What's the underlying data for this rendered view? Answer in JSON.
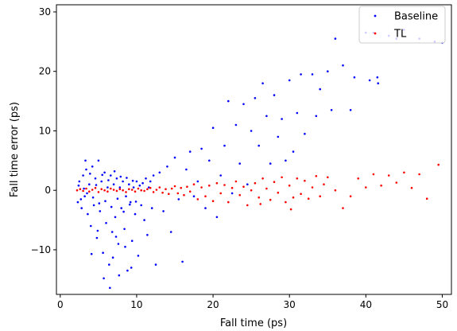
{
  "chart_data": {
    "type": "scatter",
    "title": "",
    "xlabel": "Fall time (ps)",
    "ylabel": "Fall time error (ps)",
    "xlim": [
      -0.5,
      51.2
    ],
    "ylim": [
      -17.5,
      31.2
    ],
    "xticks": [
      0,
      10,
      20,
      30,
      40,
      50
    ],
    "yticks": [
      -10,
      0,
      10,
      20,
      30
    ],
    "xtick_labels": [
      "0",
      "10",
      "20",
      "30",
      "40",
      "50"
    ],
    "ytick_labels": [
      "−10",
      "0",
      "10",
      "20",
      "30"
    ],
    "grid": false,
    "legend_position": "top-right",
    "series": [
      {
        "name": "Baseline",
        "color": "#0000ff",
        "points": [
          [
            2.3,
            -2.0
          ],
          [
            2.5,
            1.5
          ],
          [
            2.8,
            -3.0
          ],
          [
            3.0,
            2.5
          ],
          [
            3.2,
            -1.0
          ],
          [
            3.4,
            3.5
          ],
          [
            3.6,
            -4.0
          ],
          [
            3.8,
            1.0
          ],
          [
            4.0,
            -6.0
          ],
          [
            4.2,
            4.0
          ],
          [
            4.4,
            -2.5
          ],
          [
            4.6,
            2.0
          ],
          [
            4.8,
            -8.0
          ],
          [
            5.0,
            5.0
          ],
          [
            5.2,
            -3.5
          ],
          [
            5.4,
            1.5
          ],
          [
            5.6,
            -10.5
          ],
          [
            5.8,
            3.0
          ],
          [
            6.0,
            -5.5
          ],
          [
            6.2,
            0.5
          ],
          [
            6.4,
            -12.5
          ],
          [
            6.6,
            2.5
          ],
          [
            6.8,
            -7.0
          ],
          [
            7.0,
            1.0
          ],
          [
            7.2,
            -4.5
          ],
          [
            7.4,
            2.0
          ],
          [
            7.6,
            -9.0
          ],
          [
            7.8,
            0.5
          ],
          [
            8.0,
            -3.0
          ],
          [
            8.2,
            1.5
          ],
          [
            8.4,
            -6.5
          ],
          [
            8.6,
            -1.0
          ],
          [
            8.8,
            -13.5
          ],
          [
            9.0,
            1.0
          ],
          [
            9.2,
            -2.0
          ],
          [
            9.4,
            -8.5
          ],
          [
            9.6,
            0.5
          ],
          [
            9.8,
            -4.0
          ],
          [
            10.0,
            1.5
          ],
          [
            10.2,
            -11.0
          ],
          [
            10.4,
            0.8
          ],
          [
            10.6,
            -2.5
          ],
          [
            10.8,
            1.2
          ],
          [
            11.0,
            -5.0
          ],
          [
            11.2,
            2.0
          ],
          [
            11.4,
            -7.5
          ],
          [
            11.6,
            0.5
          ],
          [
            11.8,
            1.5
          ],
          [
            12.0,
            -3.0
          ],
          [
            12.2,
            2.5
          ],
          [
            12.5,
            -12.5
          ],
          [
            13.0,
            3.0
          ],
          [
            13.5,
            -3.5
          ],
          [
            14.0,
            4.0
          ],
          [
            14.5,
            -7.0
          ],
          [
            15.0,
            5.5
          ],
          [
            15.5,
            -1.5
          ],
          [
            16.0,
            -12.0
          ],
          [
            16.5,
            3.5
          ],
          [
            17.0,
            6.5
          ],
          [
            2.4,
            0.8
          ],
          [
            2.7,
            -1.5
          ],
          [
            3.1,
            0.3
          ],
          [
            3.5,
            -0.5
          ],
          [
            3.9,
            2.8
          ],
          [
            4.3,
            -1.2
          ],
          [
            4.7,
            0.9
          ],
          [
            5.1,
            -2.2
          ],
          [
            5.5,
            2.6
          ],
          [
            5.9,
            -1.8
          ],
          [
            6.3,
            1.7
          ],
          [
            6.7,
            -2.8
          ],
          [
            7.1,
            3.2
          ],
          [
            7.5,
            -1.4
          ],
          [
            7.9,
            2.3
          ],
          [
            8.3,
            -3.6
          ],
          [
            8.7,
            2.1
          ],
          [
            9.1,
            -2.4
          ],
          [
            9.5,
            1.6
          ],
          [
            9.9,
            -1.9
          ],
          [
            3.3,
            5.0
          ],
          [
            4.1,
            -10.7
          ],
          [
            4.9,
            -6.8
          ],
          [
            5.7,
            -14.8
          ],
          [
            6.5,
            -16.4
          ],
          [
            6.9,
            -11.3
          ],
          [
            7.3,
            -7.8
          ],
          [
            7.7,
            -14.3
          ],
          [
            8.5,
            -9.5
          ],
          [
            9.3,
            -13.0
          ],
          [
            17.5,
            -1.0
          ],
          [
            18.0,
            1.5
          ],
          [
            18.5,
            7.0
          ],
          [
            19.0,
            -3.0
          ],
          [
            19.5,
            5.0
          ],
          [
            20.0,
            10.5
          ],
          [
            20.5,
            -4.5
          ],
          [
            21.0,
            2.5
          ],
          [
            21.5,
            7.5
          ],
          [
            22.0,
            15.0
          ],
          [
            22.5,
            -0.5
          ],
          [
            23.0,
            11.0
          ],
          [
            23.5,
            4.5
          ],
          [
            24.0,
            14.5
          ],
          [
            24.5,
            1.0
          ],
          [
            25.0,
            10.0
          ],
          [
            25.5,
            15.5
          ],
          [
            26.0,
            7.5
          ],
          [
            26.5,
            18.0
          ],
          [
            27.0,
            12.5
          ],
          [
            27.5,
            4.5
          ],
          [
            28.0,
            16.0
          ],
          [
            28.5,
            9.0
          ],
          [
            29.0,
            12.0
          ],
          [
            29.5,
            5.0
          ],
          [
            30.0,
            18.5
          ],
          [
            30.5,
            6.5
          ],
          [
            31.0,
            13.0
          ],
          [
            31.5,
            19.5
          ],
          [
            32.0,
            9.5
          ],
          [
            33.0,
            19.5
          ],
          [
            33.5,
            12.5
          ],
          [
            34.0,
            17.0
          ],
          [
            35.0,
            20.0
          ],
          [
            35.5,
            13.5
          ],
          [
            36.0,
            25.5
          ],
          [
            37.0,
            21.0
          ],
          [
            38.0,
            13.5
          ],
          [
            38.5,
            19.0
          ],
          [
            40.0,
            26.5
          ],
          [
            40.5,
            18.5
          ],
          [
            41.0,
            26.5
          ],
          [
            41.5,
            19.0
          ],
          [
            41.6,
            18.0
          ],
          [
            43.0,
            26.0
          ],
          [
            44.0,
            25.5
          ],
          [
            45.0,
            27.0
          ],
          [
            47.0,
            25.5
          ],
          [
            49.0,
            25.0
          ],
          [
            50.0,
            24.8
          ]
        ]
      },
      {
        "name": "TL",
        "color": "#ff0000",
        "points": [
          [
            2.2,
            0.0
          ],
          [
            2.6,
            0.2
          ],
          [
            3.0,
            -0.1
          ],
          [
            3.4,
            0.3
          ],
          [
            3.8,
            -0.2
          ],
          [
            4.2,
            0.1
          ],
          [
            4.6,
            0.4
          ],
          [
            5.0,
            -0.3
          ],
          [
            5.4,
            0.2
          ],
          [
            5.8,
            0.0
          ],
          [
            6.2,
            -0.2
          ],
          [
            6.6,
            0.3
          ],
          [
            7.0,
            0.1
          ],
          [
            7.4,
            -0.1
          ],
          [
            7.8,
            0.2
          ],
          [
            8.2,
            0.0
          ],
          [
            8.6,
            -0.3
          ],
          [
            9.0,
            0.2
          ],
          [
            9.4,
            0.1
          ],
          [
            9.8,
            -0.2
          ],
          [
            10.2,
            0.3
          ],
          [
            10.6,
            0.0
          ],
          [
            11.0,
            -0.1
          ],
          [
            11.4,
            0.2
          ],
          [
            11.8,
            0.4
          ],
          [
            12.2,
            -0.3
          ],
          [
            12.6,
            0.1
          ],
          [
            13.0,
            0.5
          ],
          [
            13.4,
            -0.4
          ],
          [
            13.8,
            0.2
          ],
          [
            14.2,
            -0.6
          ],
          [
            14.6,
            0.3
          ],
          [
            15.0,
            0.7
          ],
          [
            15.4,
            -0.5
          ],
          [
            15.8,
            0.4
          ],
          [
            16.2,
            -0.8
          ],
          [
            16.6,
            0.6
          ],
          [
            17.0,
            -0.2
          ],
          [
            17.5,
            1.0
          ],
          [
            18.0,
            -1.5
          ],
          [
            18.5,
            0.5
          ],
          [
            19.0,
            -1.0
          ],
          [
            19.5,
            0.8
          ],
          [
            20.0,
            -1.8
          ],
          [
            20.5,
            1.2
          ],
          [
            21.0,
            -0.5
          ],
          [
            21.5,
            0.9
          ],
          [
            22.0,
            -2.0
          ],
          [
            22.5,
            0.4
          ],
          [
            23.0,
            1.5
          ],
          [
            23.5,
            -0.8
          ],
          [
            24.0,
            0.6
          ],
          [
            24.5,
            -2.5
          ],
          [
            25.0,
            0.0
          ],
          [
            25.5,
            1.2
          ],
          [
            26.0,
            -1.2
          ],
          [
            26.5,
            2.0
          ],
          [
            27.0,
            0.3
          ],
          [
            27.5,
            -1.6
          ],
          [
            28.0,
            1.4
          ],
          [
            28.5,
            -0.4
          ],
          [
            29.0,
            2.2
          ],
          [
            29.5,
            -2.0
          ],
          [
            30.0,
            0.8
          ],
          [
            30.5,
            -1.2
          ],
          [
            31.0,
            2.0
          ],
          [
            31.5,
            -0.6
          ],
          [
            32.0,
            1.6
          ],
          [
            32.5,
            -1.4
          ],
          [
            33.0,
            0.5
          ],
          [
            33.5,
            2.4
          ],
          [
            34.0,
            -1.0
          ],
          [
            34.5,
            1.0
          ],
          [
            35.0,
            2.2
          ],
          [
            36.0,
            0.0
          ],
          [
            37.0,
            -3.0
          ],
          [
            38.0,
            -1.0
          ],
          [
            39.0,
            2.0
          ],
          [
            40.0,
            0.5
          ],
          [
            41.0,
            2.7
          ],
          [
            42.0,
            0.8
          ],
          [
            43.0,
            2.5
          ],
          [
            44.0,
            1.3
          ],
          [
            45.0,
            3.0
          ],
          [
            46.0,
            0.4
          ],
          [
            47.0,
            2.7
          ],
          [
            48.0,
            -1.4
          ],
          [
            49.5,
            4.3
          ],
          [
            26.2,
            -2.3
          ],
          [
            30.2,
            -3.2
          ]
        ]
      }
    ]
  }
}
